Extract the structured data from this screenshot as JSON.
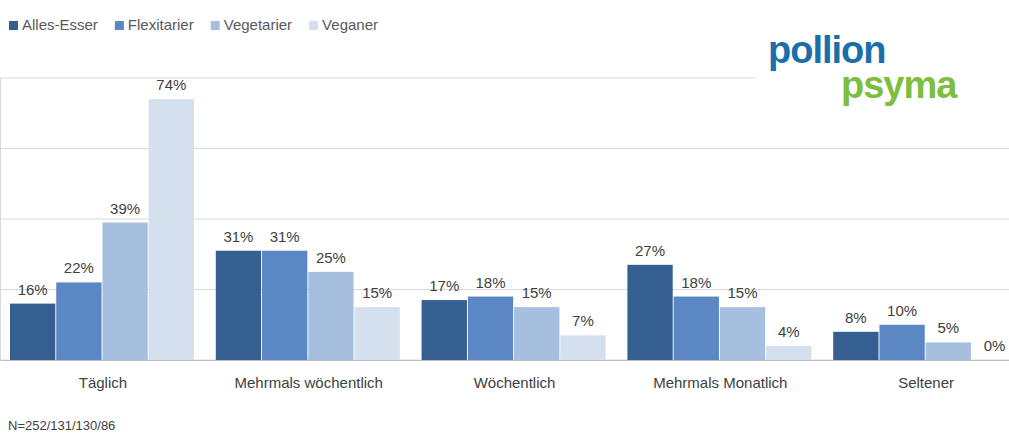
{
  "chart_data": {
    "type": "bar",
    "categories": [
      "Täglich",
      "Mehrmals wöchentlich",
      "Wöchentlich",
      "Mehrmals Monatlich",
      "Seltener"
    ],
    "series": [
      {
        "name": "Alles-Esser",
        "color": "#355f91",
        "values": [
          16,
          31,
          17,
          27,
          8
        ],
        "value_labels": [
          "16%",
          "31%",
          "17%",
          "27%",
          "8%"
        ]
      },
      {
        "name": "Flexitarier",
        "color": "#5b87c5",
        "values": [
          22,
          31,
          18,
          18,
          10
        ],
        "value_labels": [
          "22%",
          "31%",
          "18%",
          "18%",
          "10%"
        ]
      },
      {
        "name": "Vegetarier",
        "color": "#a7bfdf",
        "values": [
          39,
          25,
          15,
          15,
          5
        ],
        "value_labels": [
          "39%",
          "25%",
          "15%",
          "15%",
          "5%"
        ]
      },
      {
        "name": "Veganer",
        "color": "#d5e0ef",
        "values": [
          74,
          15,
          7,
          4,
          0
        ],
        "value_labels": [
          "74%",
          "15%",
          "7%",
          "4%",
          "0%"
        ]
      }
    ],
    "ylim": [
      0,
      80
    ],
    "yticks": [
      0,
      20,
      40,
      60,
      80
    ],
    "grid": true,
    "legend": "top-left",
    "data_labels": true,
    "tick_labels": "x",
    "annotations": [
      "N=252/131/130/86"
    ],
    "logo": [
      "pollion",
      "psyma"
    ]
  }
}
